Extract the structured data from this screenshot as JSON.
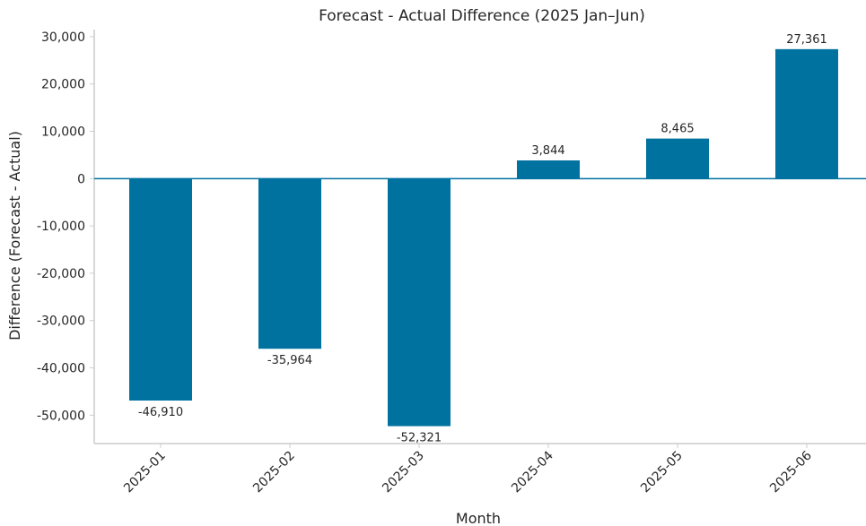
{
  "chart_data": {
    "type": "bar",
    "title": "Forecast - Actual Difference (2025 Jan–Jun)",
    "xlabel": "Month",
    "ylabel": "Difference (Forecast - Actual)",
    "categories": [
      "2025-01",
      "2025-02",
      "2025-03",
      "2025-04",
      "2025-05",
      "2025-06"
    ],
    "values": [
      -46910,
      -35964,
      -52321,
      3844,
      8465,
      27361
    ],
    "data_labels": [
      "-46,910",
      "-35,964",
      "-52,321",
      "3,844",
      "8,465",
      "27,361"
    ],
    "ylim": [
      -56000,
      31500
    ],
    "yticks": [
      30000,
      20000,
      10000,
      0,
      -10000,
      -20000,
      -30000,
      -40000,
      -50000
    ],
    "ytick_labels": [
      "30,000",
      "20,000",
      "10,000",
      "0",
      "-10,000",
      "-20,000",
      "-30,000",
      "-40,000",
      "-50,000"
    ],
    "grid": false,
    "legend": "none",
    "zero_line": true,
    "colors": {
      "bar": "#0072a0",
      "zero_line": "#0072a0",
      "axis": "#cccccc",
      "text": "#262626"
    }
  }
}
